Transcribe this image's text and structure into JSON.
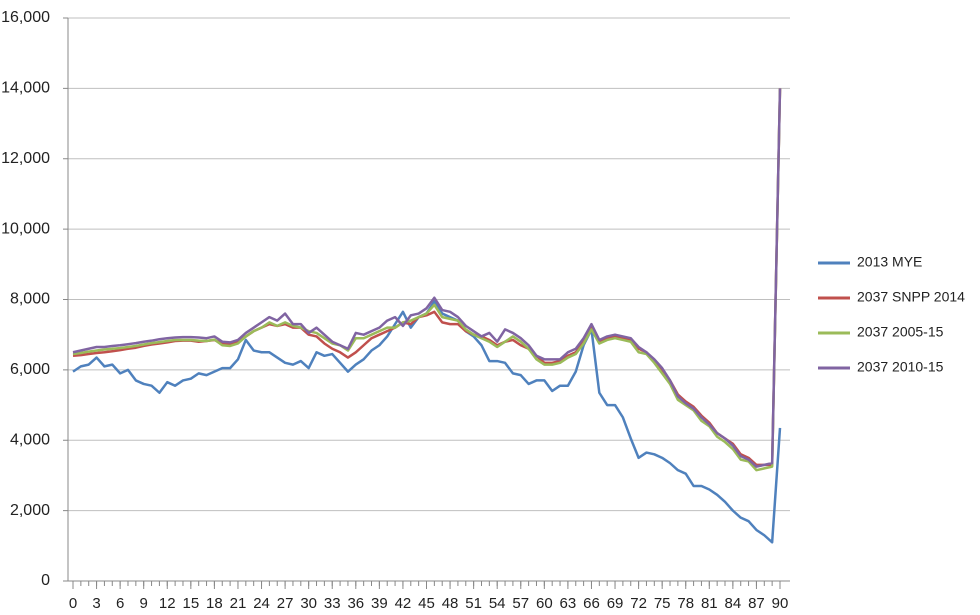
{
  "chart_data": {
    "type": "line",
    "x": [
      0,
      1,
      2,
      3,
      4,
      5,
      6,
      7,
      8,
      9,
      10,
      11,
      12,
      13,
      14,
      15,
      16,
      17,
      18,
      19,
      20,
      21,
      22,
      23,
      24,
      25,
      26,
      27,
      28,
      29,
      30,
      31,
      32,
      33,
      34,
      35,
      36,
      37,
      38,
      39,
      40,
      41,
      42,
      43,
      44,
      45,
      46,
      47,
      48,
      49,
      50,
      51,
      52,
      53,
      54,
      55,
      56,
      57,
      58,
      59,
      60,
      61,
      62,
      63,
      64,
      65,
      66,
      67,
      68,
      69,
      70,
      71,
      72,
      73,
      74,
      75,
      76,
      77,
      78,
      79,
      80,
      81,
      82,
      83,
      84,
      85,
      86,
      87,
      88,
      89,
      90
    ],
    "xlim": [
      0,
      90
    ],
    "xticks": [
      0,
      3,
      6,
      9,
      12,
      15,
      18,
      21,
      24,
      27,
      30,
      33,
      36,
      39,
      42,
      45,
      48,
      51,
      54,
      57,
      60,
      63,
      66,
      69,
      72,
      75,
      78,
      81,
      84,
      87,
      90
    ],
    "ylim": [
      0,
      16000
    ],
    "yticks": [
      0,
      {
        "value": 2000,
        "label": "2,000"
      },
      {
        "value": 4000,
        "label": "4,000"
      },
      {
        "value": 6000,
        "label": "6,000"
      },
      {
        "value": 8000,
        "label": "8,000"
      },
      {
        "value": 10000,
        "label": "10,000"
      },
      {
        "value": 12000,
        "label": "12,000"
      },
      {
        "value": 14000,
        "label": "14,000"
      },
      {
        "value": 16000,
        "label": "16,000"
      }
    ],
    "grid": true,
    "legend": "right",
    "series": [
      {
        "name": "2013 MYE",
        "color": "#4f81bd",
        "values": [
          5950,
          6100,
          6150,
          6350,
          6100,
          6150,
          5900,
          6000,
          5700,
          5600,
          5550,
          5350,
          5650,
          5550,
          5700,
          5750,
          5900,
          5850,
          5950,
          6050,
          6050,
          6300,
          6850,
          6550,
          6500,
          6500,
          6350,
          6200,
          6150,
          6250,
          6050,
          6500,
          6400,
          6450,
          6200,
          5950,
          6150,
          6300,
          6550,
          6700,
          6950,
          7300,
          7650,
          7200,
          7500,
          7600,
          7950,
          7600,
          7500,
          7400,
          7100,
          6950,
          6700,
          6250,
          6250,
          6200,
          5900,
          5850,
          5600,
          5700,
          5700,
          5400,
          5550,
          5550,
          5950,
          6700,
          7150,
          5350,
          5000,
          5000,
          4650,
          4050,
          3500,
          3650,
          3600,
          3500,
          3350,
          3150,
          3050,
          2700,
          2700,
          2600,
          2450,
          2250,
          2000,
          1800,
          1700,
          1450,
          1300,
          1100,
          4350
        ]
      },
      {
        "name": "2037 SNPP 2014",
        "color": "#c0504d",
        "values": [
          6400,
          6420,
          6450,
          6480,
          6500,
          6530,
          6560,
          6600,
          6630,
          6680,
          6720,
          6750,
          6780,
          6820,
          6830,
          6830,
          6800,
          6820,
          6850,
          6750,
          6720,
          6800,
          6950,
          7100,
          7200,
          7300,
          7250,
          7300,
          7200,
          7200,
          7000,
          6950,
          6750,
          6600,
          6500,
          6350,
          6500,
          6700,
          6900,
          7000,
          7100,
          7200,
          7350,
          7300,
          7500,
          7550,
          7650,
          7350,
          7300,
          7300,
          7100,
          7000,
          6950,
          6850,
          6700,
          6800,
          6850,
          6700,
          6600,
          6400,
          6200,
          6200,
          6250,
          6400,
          6500,
          6800,
          7200,
          6800,
          6900,
          6950,
          6900,
          6850,
          6600,
          6500,
          6250,
          6000,
          5700,
          5300,
          5100,
          4950,
          4700,
          4500,
          4200,
          4050,
          3900,
          3600,
          3500,
          3300,
          3300,
          3300,
          14000
        ]
      },
      {
        "name": "2037 2005-15",
        "color": "#9bbb59",
        "values": [
          6450,
          6480,
          6520,
          6550,
          6580,
          6600,
          6620,
          6650,
          6680,
          6720,
          6760,
          6790,
          6820,
          6850,
          6850,
          6850,
          6830,
          6820,
          6860,
          6700,
          6680,
          6750,
          6950,
          7100,
          7200,
          7350,
          7250,
          7350,
          7250,
          7200,
          7100,
          7050,
          6900,
          6750,
          6700,
          6550,
          6900,
          6900,
          7000,
          7100,
          7200,
          7200,
          7350,
          7400,
          7500,
          7600,
          7850,
          7500,
          7450,
          7400,
          7150,
          7000,
          6900,
          6800,
          6650,
          6800,
          6950,
          6800,
          6600,
          6300,
          6150,
          6150,
          6200,
          6350,
          6450,
          6750,
          7150,
          6750,
          6850,
          6900,
          6850,
          6800,
          6500,
          6450,
          6200,
          5900,
          5600,
          5150,
          5000,
          4850,
          4550,
          4400,
          4100,
          3950,
          3750,
          3450,
          3400,
          3150,
          3200,
          3250,
          14000
        ]
      },
      {
        "name": "2037 2010-15",
        "color": "#8064a2",
        "values": [
          6500,
          6550,
          6600,
          6650,
          6650,
          6680,
          6700,
          6730,
          6760,
          6800,
          6830,
          6870,
          6900,
          6920,
          6930,
          6930,
          6920,
          6900,
          6950,
          6800,
          6780,
          6850,
          7050,
          7200,
          7350,
          7500,
          7400,
          7600,
          7300,
          7300,
          7050,
          7200,
          7000,
          6800,
          6700,
          6600,
          7050,
          7000,
          7100,
          7200,
          7400,
          7500,
          7250,
          7550,
          7600,
          7750,
          8050,
          7700,
          7650,
          7500,
          7250,
          7100,
          6950,
          7050,
          6800,
          7150,
          7050,
          6900,
          6700,
          6400,
          6300,
          6300,
          6300,
          6500,
          6600,
          6900,
          7300,
          6850,
          6950,
          7000,
          6950,
          6900,
          6650,
          6500,
          6300,
          6050,
          5700,
          5250,
          5050,
          4900,
          4650,
          4450,
          4200,
          4050,
          3850,
          3550,
          3450,
          3250,
          3300,
          3350,
          14000
        ]
      }
    ]
  }
}
